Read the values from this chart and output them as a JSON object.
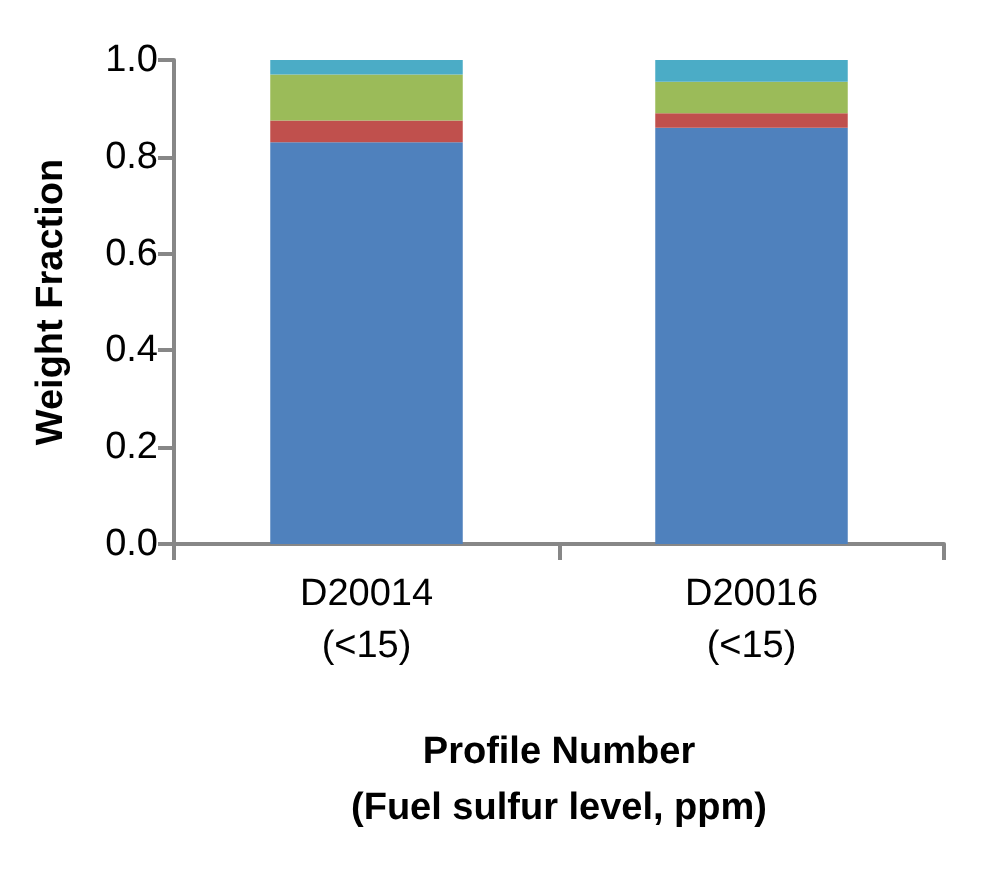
{
  "chart_data": {
    "type": "bar",
    "stacked": true,
    "xlabel": "Profile Number\n(Fuel sulfur level, ppm)",
    "ylabel": "Weight Fraction",
    "categories": [
      "D20014\n(<15)",
      "D20016\n(<15)"
    ],
    "series": [
      {
        "color": "#4f81bd",
        "values": [
          0.83,
          0.86
        ]
      },
      {
        "color": "#c0504d",
        "values": [
          0.045,
          0.03
        ]
      },
      {
        "color": "#9bbb59",
        "values": [
          0.095,
          0.065
        ]
      },
      {
        "color": "#4bacc6",
        "values": [
          0.03,
          0.045
        ]
      }
    ],
    "ylim": [
      0,
      1
    ],
    "yticks": [
      {
        "value": 0,
        "label": "0.0"
      },
      {
        "value": 0.2,
        "label": "0.2"
      },
      {
        "value": 0.4,
        "label": "0.4"
      },
      {
        "value": 0.6,
        "label": "0.6"
      },
      {
        "value": 0.8,
        "label": "0.8"
      },
      {
        "value": 1,
        "label": "1.0"
      }
    ],
    "grid": false
  }
}
